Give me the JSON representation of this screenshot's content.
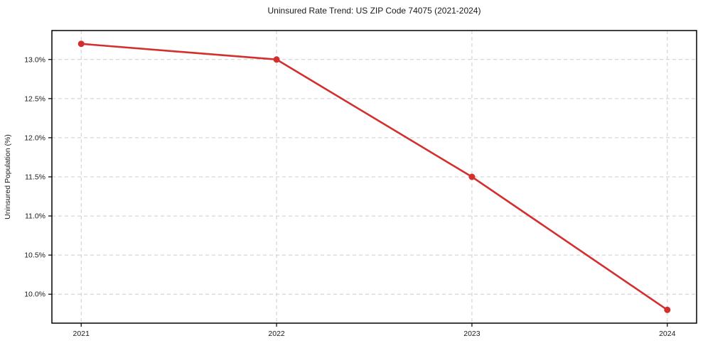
{
  "chart_data": {
    "type": "line",
    "title": "Uninsured Rate Trend: US ZIP Code 74075 (2021-2024)",
    "xlabel": "",
    "ylabel": "Uninsured Population (%)",
    "x": [
      2021,
      2022,
      2023,
      2024
    ],
    "values": [
      13.2,
      13.0,
      11.5,
      9.8
    ],
    "xticks": [
      2021,
      2022,
      2023,
      2024
    ],
    "xtick_labels": [
      "2021",
      "2022",
      "2023",
      "2024"
    ],
    "yticks": [
      10.0,
      10.5,
      11.0,
      11.5,
      12.0,
      12.5,
      13.0
    ],
    "ytick_labels": [
      "10.0%",
      "10.5%",
      "11.0%",
      "11.5%",
      "12.0%",
      "12.5%",
      "13.0%"
    ],
    "xlim": [
      2020.85,
      2024.15
    ],
    "ylim": [
      9.63,
      13.37
    ],
    "grid": true,
    "grid_style": "dashed",
    "legend": "none",
    "colors": {
      "line": "#d32f2f",
      "marker": "#d32f2f",
      "grid": "#cccccc",
      "spine": "#000000",
      "text": "#1a1a1a",
      "background": "#ffffff"
    }
  }
}
